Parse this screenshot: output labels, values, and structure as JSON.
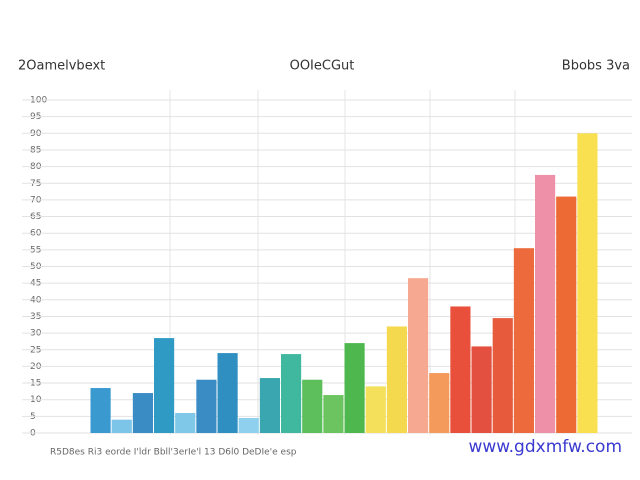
{
  "chart_data": {
    "type": "bar",
    "title": "2Oamelvbext",
    "subtitle": "OOIeCGut",
    "corner_label": "Bbobs 3va",
    "x_label": "R5D8es  Ri3 eorde I'ldr  Bbll'3erIe'l 13  D6l0  DeDIe'e esp",
    "watermark": "www.gdxmfw.com",
    "categories": [
      null,
      null,
      null,
      null,
      null,
      null,
      null,
      null,
      null,
      null,
      null,
      null,
      null,
      null,
      null,
      null,
      null,
      null,
      null,
      null,
      null,
      null,
      null,
      null
    ],
    "values": [
      13.5,
      4,
      12,
      28.5,
      6,
      16,
      24,
      4.5,
      16.5,
      23.7,
      16,
      11.4,
      27,
      14,
      32,
      46.5,
      18,
      38,
      26,
      34.5,
      55.5,
      77.5,
      71,
      90
    ],
    "colors": [
      "#3a9ad0",
      "#7cc4e8",
      "#3a8cc4",
      "#2f9bc4",
      "#7fc8e8",
      "#3a8cc4",
      "#2f8fc0",
      "#8fd0ee",
      "#3aa6b0",
      "#40b8a0",
      "#5cbf5c",
      "#6cc460",
      "#4eb84e",
      "#f4e05a",
      "#f4d84e",
      "#f6a890",
      "#f49a5a",
      "#e8503c",
      "#e45040",
      "#e85a3c",
      "#ec6a3c",
      "#ee90a8",
      "#ee6a34",
      "#f8e050"
    ],
    "ylim": [
      0,
      100
    ],
    "yticks": [
      0,
      5,
      10,
      15,
      20,
      25,
      30,
      35,
      40,
      45,
      50,
      55,
      60,
      65,
      70,
      75,
      80,
      85,
      90,
      95,
      100
    ],
    "grid": true
  }
}
